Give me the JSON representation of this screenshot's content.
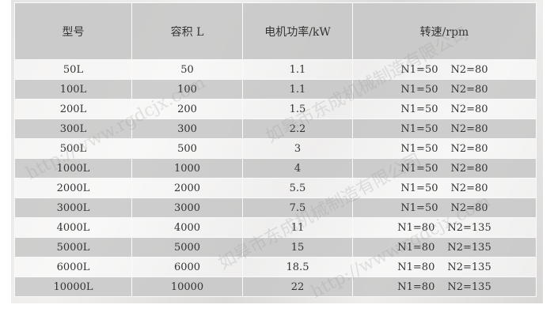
{
  "headers": [
    "型号",
    "容积 L",
    "电机功率/kW",
    "转速/rpm"
  ],
  "rows": [
    {
      "model": "50L",
      "volume": "50",
      "power": "1.1",
      "n1": "N1=50",
      "n2": "N2=80"
    },
    {
      "model": "100L",
      "volume": "100",
      "power": "1.1",
      "n1": "N1=50",
      "n2": "N2=80"
    },
    {
      "model": "200L",
      "volume": "200",
      "power": "1.5",
      "n1": "N1=50",
      "n2": "N2=80"
    },
    {
      "model": "300L",
      "volume": "300",
      "power": "2.2",
      "n1": "N1=50",
      "n2": "N2=80"
    },
    {
      "model": "500L",
      "volume": "500",
      "power": "3",
      "n1": "N1=50",
      "n2": "N2=80"
    },
    {
      "model": "1000L",
      "volume": "1000",
      "power": "4",
      "n1": "N1=50",
      "n2": "N2=80"
    },
    {
      "model": "2000L",
      "volume": "2000",
      "power": "5.5",
      "n1": "N1=50",
      "n2": "N2=80"
    },
    {
      "model": "3000L",
      "volume": "3000",
      "power": "7.5",
      "n1": "N1=50",
      "n2": "N2=80"
    },
    {
      "model": "4000L",
      "volume": "4000",
      "power": "11",
      "n1": "N1=80",
      "n2": "N2=135"
    },
    {
      "model": "5000L",
      "volume": "5000",
      "power": "15",
      "n1": "N1=80",
      "n2": "N2=135"
    },
    {
      "model": "6000L",
      "volume": "6000",
      "power": "18.5",
      "n1": "N1=80",
      "n2": "N2=135"
    },
    {
      "model": "10000L",
      "volume": "10000",
      "power": "22",
      "n1": "N1=80",
      "n2": "N2=135"
    }
  ],
  "watermark": {
    "company": "如皋市东成机械制造有限公司",
    "url": "http://www.rgdcjx.com"
  }
}
